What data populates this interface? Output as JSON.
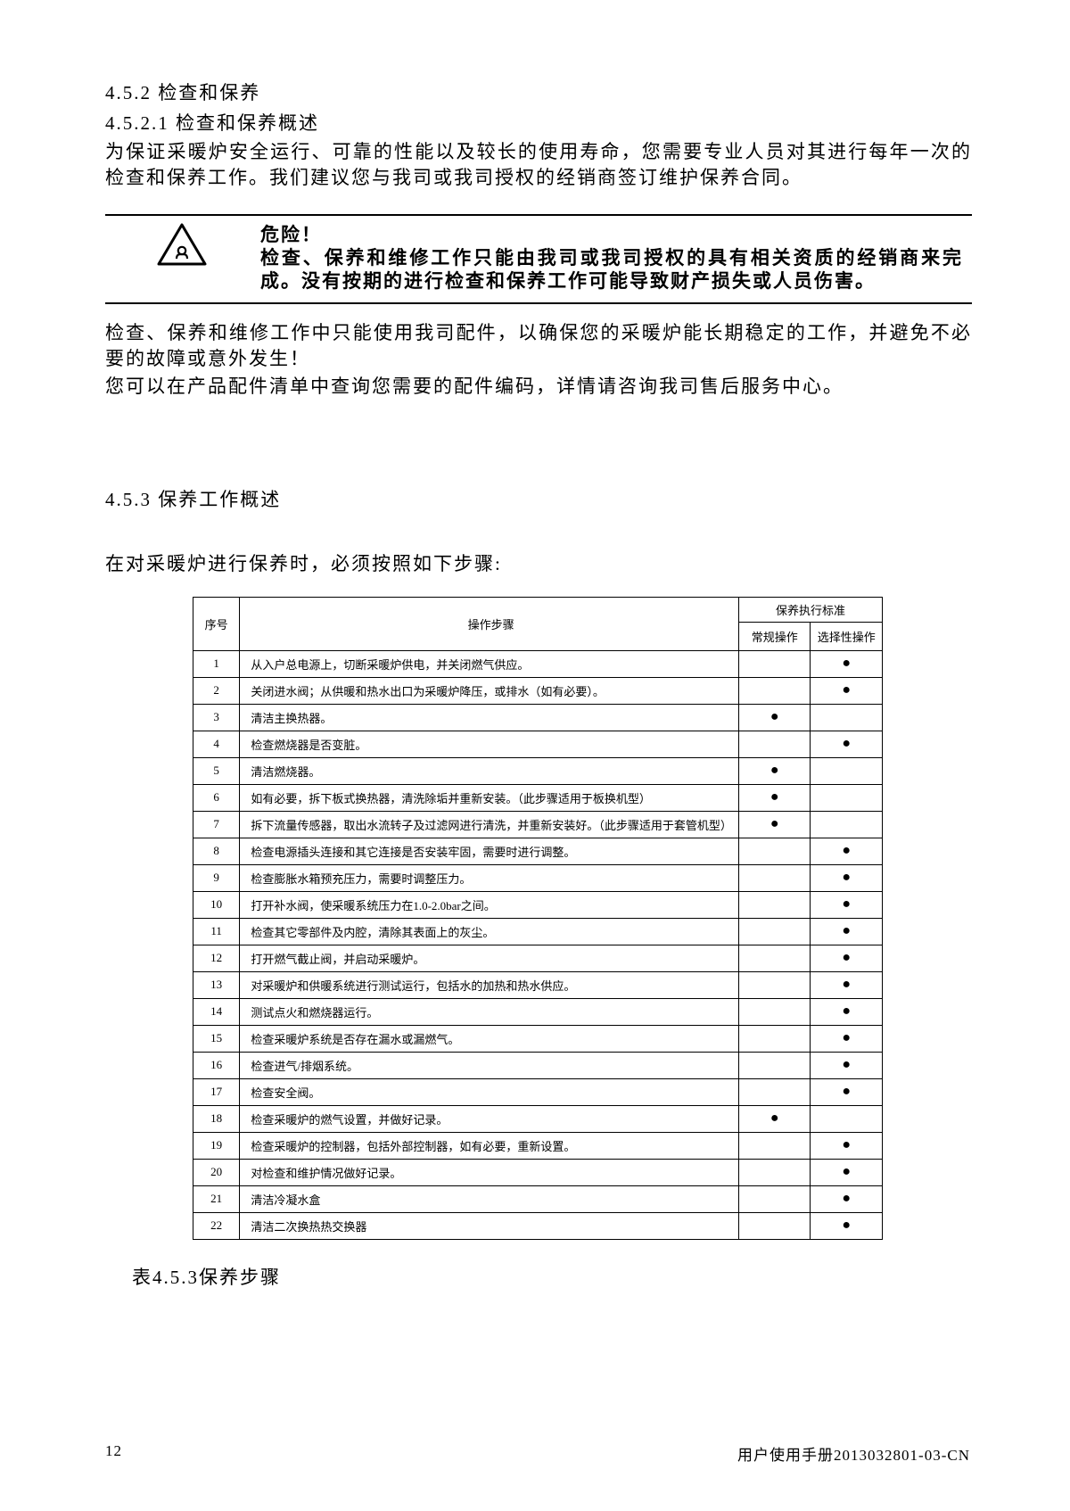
{
  "sections": {
    "s452": {
      "num": "4.5.2",
      "title": "检查和保养"
    },
    "s4521": {
      "num": "4.5.2.1",
      "title": "检查和保养概述"
    },
    "s453": {
      "num": "4.5.3",
      "title": "保养工作概述"
    }
  },
  "para1": "为保证采暖炉安全运行、可靠的性能以及较长的使用寿命，您需要专业人员对其进行每年一次的检查和保养工作。我们建议您与我司或我司授权的经销商签订维护保养合同。",
  "danger": {
    "title": "危险！",
    "body": "检查、保养和维修工作只能由我司或我司授权的具有相关资质的经销商来完成。没有按期的进行检查和保养工作可能导致财产损失或人员伤害。",
    "icon_stroke": "#000000"
  },
  "para2a": "检查、保养和维修工作中只能使用我司配件，以确保您的采暖炉能长期稳定的工作，并避免不必要的故障或意外发生！",
  "para2b": "您可以在产品配件清单中查询您需要的配件编码，详情请咨询我司售后服务中心。",
  "intro453": "在对采暖炉进行保养时，必须按照如下步骤:",
  "table": {
    "headers": {
      "seq": "序号",
      "step": "操作步骤",
      "std_group": "保养执行标准",
      "std_a": "常规操作",
      "std_b": "选择性操作"
    },
    "rows": [
      {
        "n": "1",
        "step": "从入户总电源上，切断采暖炉供电，并关闭燃气供应。",
        "a": false,
        "b": true
      },
      {
        "n": "2",
        "step": "关闭进水阀；从供暖和热水出口为采暖炉降压，或排水（如有必要）。",
        "a": false,
        "b": true
      },
      {
        "n": "3",
        "step": "清洁主换热器。",
        "a": true,
        "b": false
      },
      {
        "n": "4",
        "step": "检查燃烧器是否变脏。",
        "a": false,
        "b": true
      },
      {
        "n": "5",
        "step": "清洁燃烧器。",
        "a": true,
        "b": false
      },
      {
        "n": "6",
        "step": "如有必要，拆下板式换热器，清洗除垢并重新安装。（此步骤适用于板换机型）",
        "a": true,
        "b": false
      },
      {
        "n": "7",
        "step": "拆下流量传感器，取出水流转子及过滤网进行清洗，并重新安装好。（此步骤适用于套管机型）",
        "a": true,
        "b": false
      },
      {
        "n": "8",
        "step": "检查电源插头连接和其它连接是否安装牢固，需要时进行调整。",
        "a": false,
        "b": true
      },
      {
        "n": "9",
        "step": "检查膨胀水箱预充压力，需要时调整压力。",
        "a": false,
        "b": true
      },
      {
        "n": "10",
        "step": "打开补水阀，使采暖系统压力在1.0-2.0bar之间。",
        "a": false,
        "b": true
      },
      {
        "n": "11",
        "step": "检查其它零部件及内腔，清除其表面上的灰尘。",
        "a": false,
        "b": true
      },
      {
        "n": "12",
        "step": "打开燃气截止阀，并启动采暖炉。",
        "a": false,
        "b": true
      },
      {
        "n": "13",
        "step": "对采暖炉和供暖系统进行测试运行，包括水的加热和热水供应。",
        "a": false,
        "b": true
      },
      {
        "n": "14",
        "step": "测试点火和燃烧器运行。",
        "a": false,
        "b": true
      },
      {
        "n": "15",
        "step": "检查采暖炉系统是否存在漏水或漏燃气。",
        "a": false,
        "b": true
      },
      {
        "n": "16",
        "step": "检查进气/排烟系统。",
        "a": false,
        "b": true
      },
      {
        "n": "17",
        "step": "检查安全阀。",
        "a": false,
        "b": true
      },
      {
        "n": "18",
        "step": "检查采暖炉的燃气设置，并做好记录。",
        "a": true,
        "b": false
      },
      {
        "n": "19",
        "step": "检查采暖炉的控制器，包括外部控制器，如有必要，重新设置。",
        "a": false,
        "b": true
      },
      {
        "n": "20",
        "step": "对检查和维护情况做好记录。",
        "a": false,
        "b": true
      },
      {
        "n": "21",
        "step": "清洁冷凝水盒",
        "a": false,
        "b": true
      },
      {
        "n": "22",
        "step": "清洁二次换热热交换器",
        "a": false,
        "b": true
      }
    ]
  },
  "table_caption": "表4.5.3保养步骤",
  "footer": {
    "page": "12",
    "doc": "用户使用手册2013032801-03-CN"
  }
}
